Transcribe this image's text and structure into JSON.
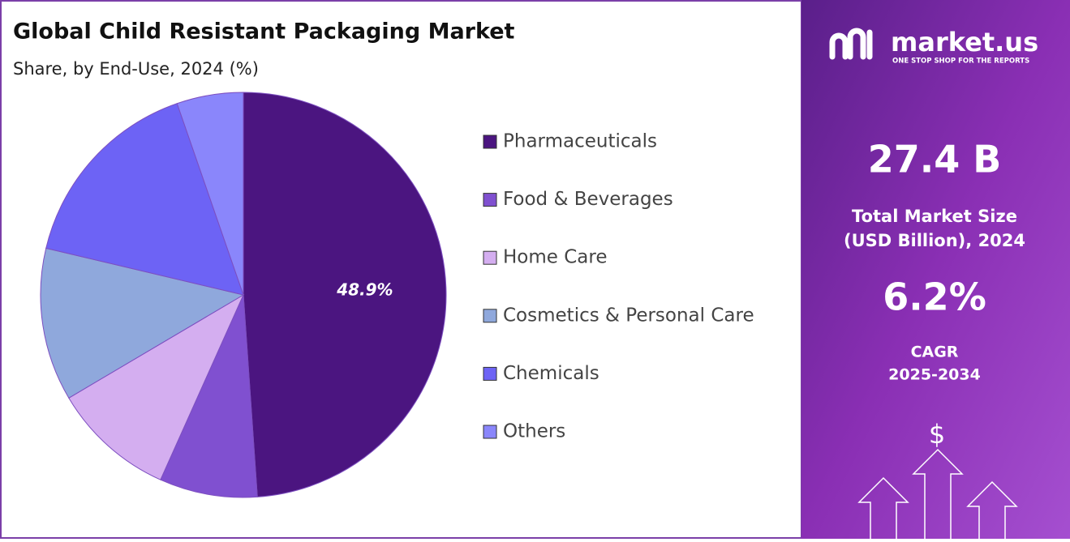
{
  "chart_data": {
    "type": "pie",
    "title": "Global Child Resistant Packaging Market",
    "subtitle": "Share, by End-Use, 2024 (%)",
    "categories": [
      "Pharmaceuticals",
      "Food & Beverages",
      "Home Care",
      "Cosmetics & Personal Care",
      "Chemicals",
      "Others"
    ],
    "values": [
      48.9,
      7.8,
      9.8,
      12.2,
      16.0,
      5.3
    ],
    "value_labels": [
      "48.9%",
      null,
      null,
      null,
      null,
      null
    ],
    "colors": [
      "#4b1580",
      "#8050d0",
      "#d4aef0",
      "#8fa8dc",
      "#6d63f5",
      "#8a86fb"
    ],
    "start_angle": 0,
    "direction": "clockwise"
  },
  "sidebar": {
    "brand": "market.us",
    "tagline": "ONE STOP SHOP FOR THE REPORTS",
    "market_size": "27.4 B",
    "market_size_label_1": "Total Market Size",
    "market_size_label_2": "(USD Billion), 2024",
    "cagr": "6.2%",
    "cagr_label_1": "CAGR",
    "cagr_label_2": "2025-2034",
    "icon": "$"
  }
}
